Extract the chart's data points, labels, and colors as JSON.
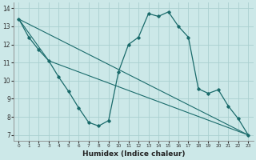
{
  "xlabel": "Humidex (Indice chaleur)",
  "bg_color": "#cce8e8",
  "grid_color": "#aad0d0",
  "line_color": "#1a6b6b",
  "xlim": [
    -0.5,
    23.5
  ],
  "ylim": [
    6.7,
    14.3
  ],
  "yticks": [
    7,
    8,
    9,
    10,
    11,
    12,
    13,
    14
  ],
  "xticks": [
    0,
    1,
    2,
    3,
    4,
    5,
    6,
    7,
    8,
    9,
    10,
    11,
    12,
    13,
    14,
    15,
    16,
    17,
    18,
    19,
    20,
    21,
    22,
    23
  ],
  "line1_x": [
    0,
    1,
    2,
    3,
    4,
    5,
    6,
    7,
    8,
    9,
    10,
    11,
    12,
    13,
    14,
    15,
    16,
    17,
    18,
    19,
    20,
    21,
    22,
    23
  ],
  "line1_y": [
    13.4,
    12.4,
    11.7,
    11.1,
    10.2,
    9.4,
    8.5,
    7.7,
    7.5,
    7.8,
    10.5,
    12.0,
    12.4,
    13.7,
    13.55,
    13.8,
    13.0,
    12.4,
    9.55,
    9.3,
    9.5,
    8.6,
    7.9,
    7.0
  ],
  "line2_x": [
    0,
    23
  ],
  "line2_y": [
    13.4,
    7.0
  ],
  "line3_x": [
    0,
    3,
    23
  ],
  "line3_y": [
    13.4,
    11.1,
    7.0
  ]
}
